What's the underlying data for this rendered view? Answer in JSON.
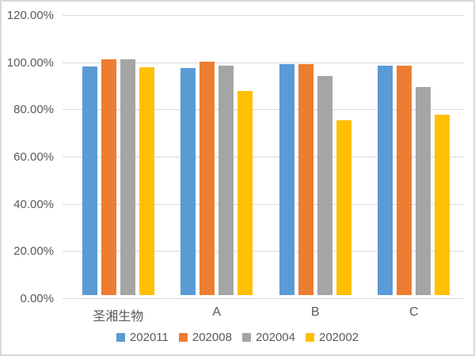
{
  "chart_data": {
    "type": "bar",
    "title": "",
    "xlabel": "",
    "ylabel": "",
    "ylim": [
      0,
      120
    ],
    "grid": "horizontal",
    "legend_position": "bottom-center",
    "yticks": [
      {
        "value": 0,
        "label": "0.00%"
      },
      {
        "value": 20,
        "label": "20.00%"
      },
      {
        "value": 40,
        "label": "40.00%"
      },
      {
        "value": 60,
        "label": "60.00%"
      },
      {
        "value": 80,
        "label": "80.00%"
      },
      {
        "value": 100,
        "label": "100.00%"
      },
      {
        "value": 120,
        "label": "120.00%"
      }
    ],
    "categories": [
      "圣湘生物",
      "A",
      "B",
      "C"
    ],
    "series": [
      {
        "name": "202011",
        "color": "#5B9BD5",
        "values": [
          97.0,
          96.3,
          98.0,
          97.3
        ]
      },
      {
        "name": "202008",
        "color": "#ED7D31",
        "values": [
          100.0,
          99.0,
          98.0,
          97.3
        ]
      },
      {
        "name": "202004",
        "color": "#A5A5A5",
        "values": [
          100.0,
          97.3,
          92.7,
          88.0
        ]
      },
      {
        "name": "202002",
        "color": "#FFC000",
        "values": [
          96.7,
          86.5,
          74.0,
          76.5
        ]
      }
    ]
  }
}
